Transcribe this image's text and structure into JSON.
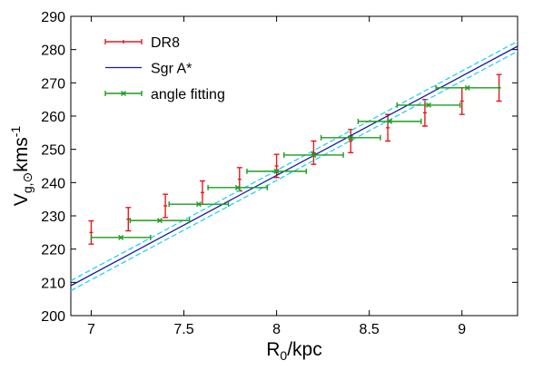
{
  "chart_data": {
    "type": "scatter",
    "xlabel": {
      "main": "R",
      "sub": "0",
      "rest": "/kpc"
    },
    "ylabel": {
      "main": "V",
      "sub": "g,⊙",
      "rest": "kms",
      "sup": "-1"
    },
    "xlim": [
      6.89,
      9.3
    ],
    "ylim": [
      200,
      290
    ],
    "xticks": [
      7,
      7.5,
      8,
      8.5,
      9
    ],
    "yticks": [
      200,
      210,
      220,
      230,
      240,
      250,
      260,
      270,
      280,
      290
    ],
    "grid": false,
    "legend": "upper left",
    "series": [
      {
        "name": "DR8",
        "color": "#e8191c",
        "kind": "yerrorbar",
        "x": [
          7.0,
          7.2,
          7.4,
          7.6,
          7.8,
          8.0,
          8.2,
          8.4,
          8.6,
          8.8,
          9.0,
          9.2
        ],
        "values": [
          225,
          229,
          233,
          237,
          241,
          245,
          249,
          252.5,
          256.5,
          261,
          264.5,
          268.5
        ],
        "yerr": [
          3.5,
          3.5,
          3.5,
          3.5,
          3.5,
          3.5,
          3.5,
          3.5,
          4,
          4,
          4,
          4
        ]
      },
      {
        "name": "Sgr A*",
        "color": "#1a1aa8",
        "kind": "line",
        "x": [
          6.89,
          9.3
        ],
        "values": [
          209,
          281
        ]
      },
      {
        "color": "#22d4e6",
        "kind": "dashed",
        "x": [
          6.89,
          9.3
        ],
        "values": [
          210.5,
          282.5
        ]
      },
      {
        "color": "#22d4e6",
        "kind": "dashed",
        "x": [
          6.89,
          9.3
        ],
        "values": [
          207.5,
          279.5
        ]
      },
      {
        "name": "angle fitting",
        "color": "#1f9a1f",
        "kind": "xerrorbar",
        "x": [
          7.16,
          7.37,
          7.58,
          7.79,
          8.0,
          8.2,
          8.4,
          8.61,
          8.82,
          9.03
        ],
        "values": [
          223.5,
          228.6,
          233.5,
          238.5,
          243.4,
          248.3,
          253.5,
          258.4,
          263.3,
          268.5
        ],
        "xerr": [
          0.16,
          0.16,
          0.16,
          0.16,
          0.16,
          0.16,
          0.16,
          0.17,
          0.17,
          0.17
        ]
      }
    ]
  }
}
